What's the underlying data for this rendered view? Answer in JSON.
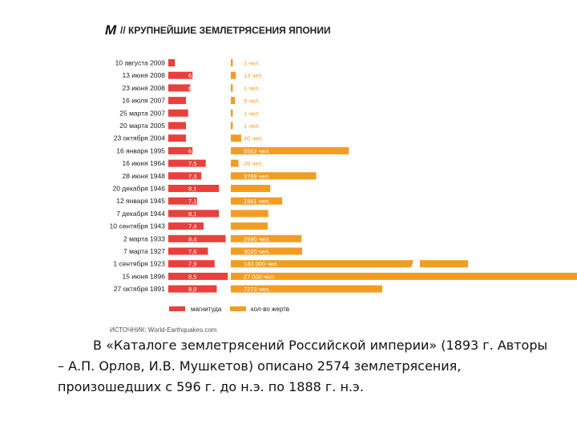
{
  "header": {
    "logo": "M",
    "title": "// КРУПНЕЙШИЕ ЗЕМЛЕТРЯСЕНИЯ ЯПОНИИ"
  },
  "colors": {
    "magnitude": "#e8403c",
    "deaths": "#f39c24",
    "text": "#222222"
  },
  "chart_data": {
    "type": "bar",
    "title": "КРУПНЕЙШИЕ ЗЕМЛЕТРЯСЕНИЯ ЯПОНИИ",
    "categories": [
      "10 августа 2009",
      "13 июня 2008",
      "23 июня 2008",
      "16 июля 2007",
      "25 марта 2007",
      "20 марта 2005",
      "23 октября 2004",
      "16 января 1995",
      "16 июня 1964",
      "28 июня 1948",
      "20 декабря 1946",
      "12 января 1945",
      "7 декабря 1944",
      "10 сентября 1943",
      "2 марта 1933",
      "7 марта 1927",
      "1 сентября 1923",
      "15 июня 1896",
      "27 октября 1891"
    ],
    "series": [
      {
        "name": "магнитуда",
        "values": [
          6.1,
          6.9,
          6.8,
          6.6,
          6.7,
          6.6,
          6.6,
          6.9,
          7.5,
          7.3,
          8.1,
          7.1,
          8.1,
          7.4,
          8.4,
          7.6,
          7.9,
          8.5,
          8.0
        ],
        "labels": [
          "6,1",
          "6,9",
          "6,8",
          "6,6",
          "6,7",
          "6,6",
          "6,6",
          "6,9",
          "7,5",
          "7,3",
          "8,1",
          "7,1",
          "8,1",
          "7,4",
          "8,4",
          "7,6",
          "7,9",
          "8,5",
          "8,0"
        ]
      },
      {
        "name": "кол-во жертв",
        "values": [
          1,
          13,
          1,
          9,
          1,
          1,
          40,
          5502,
          26,
          3769,
          1330,
          1961,
          1223,
          1190,
          2990,
          3020,
          143000,
          27000,
          7273
        ],
        "labels": [
          "1 чел.",
          "13 чел.",
          "1 чел.",
          "9 чел.",
          "1 чел.",
          "1 чел.",
          "40 чел.",
          "5502 чел.",
          "26 чел.",
          "3769 чел.",
          "1330 чел.",
          "1961 чел.",
          "1223 чел.",
          "1190 чел.",
          "2990 чел.",
          "3020 чел.",
          "143 000 чел.",
          "27 000 чел.",
          "7273 чел."
        ]
      }
    ],
    "legend": [
      "магнитуда",
      "кол-во жертв"
    ],
    "legend_position": "bottom",
    "source": "ИСТОЧНИК: World-Earthquakes.com"
  },
  "caption": {
    "text": "В «Каталоге землетрясений Российской империи» (1893 г. Авторы – А.П. Орлов, И.В. Мушкетов) описано 2574 землетрясения, произошедших с 596 г. до н.э. по 1888 г. н.э."
  }
}
